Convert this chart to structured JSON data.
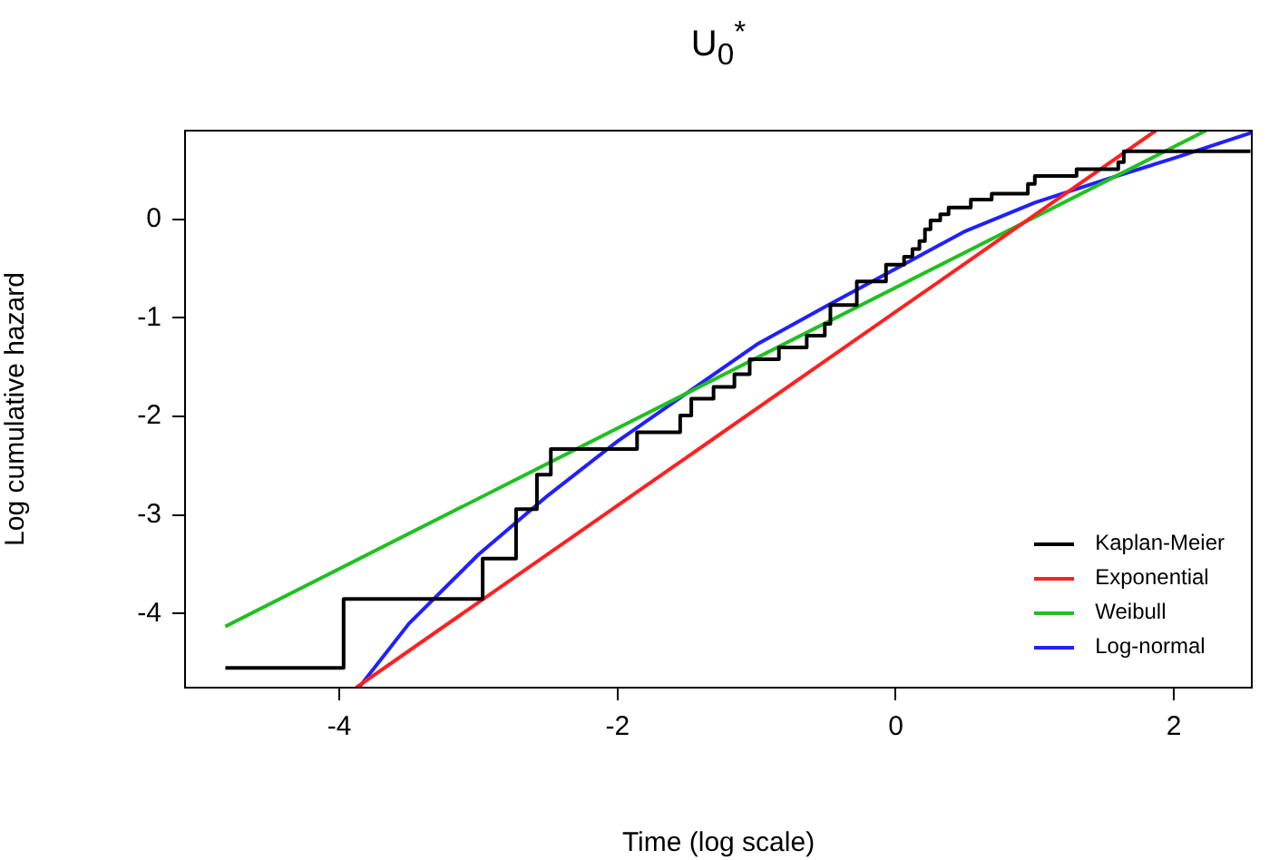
{
  "chart_data": {
    "type": "line",
    "title": "U$_{0}$$^{*}$",
    "xlabel": "Time (log scale)",
    "ylabel": "Log cumulative hazard",
    "xlim": [
      -5.11,
      2.56
    ],
    "ylim": [
      -4.75,
      0.9
    ],
    "xticks": [
      -4,
      -2,
      0,
      2
    ],
    "yticks": [
      -4,
      -3,
      -2,
      -1,
      0
    ],
    "grid": false,
    "legend": "bottom right",
    "marker": "none",
    "line_style": "solid",
    "series": [
      {
        "name": "Kaplan-Meier",
        "type": "step",
        "color": "#000000",
        "x": [
          -4.82,
          -3.97,
          -2.97,
          -2.73,
          -2.58,
          -2.48,
          -1.86,
          -1.55,
          -1.47,
          -1.31,
          -1.16,
          -1.05,
          -0.84,
          -0.64,
          -0.51,
          -0.47,
          -0.28,
          -0.07,
          0.06,
          0.12,
          0.17,
          0.21,
          0.25,
          0.32,
          0.38,
          0.54,
          0.69,
          0.95,
          1.0,
          1.3,
          1.6,
          1.64,
          2.55
        ],
        "values": [
          -4.55,
          -3.85,
          -3.44,
          -2.94,
          -2.59,
          -2.33,
          -2.16,
          -1.99,
          -1.82,
          -1.7,
          -1.57,
          -1.42,
          -1.3,
          -1.18,
          -1.06,
          -0.87,
          -0.63,
          -0.46,
          -0.38,
          -0.3,
          -0.22,
          -0.1,
          -0.01,
          0.05,
          0.12,
          0.2,
          0.26,
          0.36,
          0.44,
          0.51,
          0.58,
          0.69,
          0.69
        ]
      },
      {
        "name": "Exponential",
        "color": "#ff2020",
        "x": [
          -3.88,
          1.87
        ],
        "values": [
          -4.75,
          0.9
        ]
      },
      {
        "name": "Weibull",
        "color": "#20c020",
        "x": [
          -4.82,
          2.23
        ],
        "values": [
          -4.13,
          0.9
        ]
      },
      {
        "name": "Log-normal",
        "color": "#2020ff",
        "x": [
          -3.86,
          -3.5,
          -3,
          -2.5,
          -2,
          -1.5,
          -1,
          -0.5,
          0,
          0.5,
          1,
          1.5,
          2,
          2.56
        ],
        "values": [
          -4.75,
          -4.1,
          -3.4,
          -2.8,
          -2.25,
          -1.76,
          -1.27,
          -0.88,
          -0.5,
          -0.12,
          0.17,
          0.4,
          0.62,
          0.88
        ]
      }
    ]
  }
}
